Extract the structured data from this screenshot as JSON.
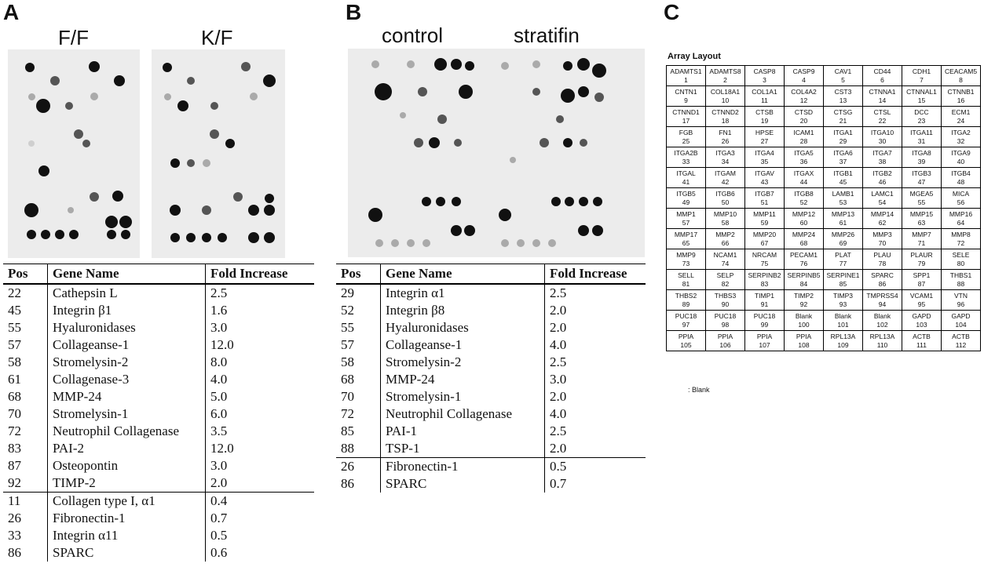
{
  "panels": {
    "a": "A",
    "b": "B",
    "c": "C"
  },
  "blots_a": {
    "left": "F/F",
    "right": "K/F"
  },
  "blots_b": {
    "left": "control",
    "right": "stratifin"
  },
  "table_headers": {
    "pos": "Pos",
    "gene": "Gene Name",
    "fold": "Fold Increase"
  },
  "table_a": {
    "rows": [
      {
        "pos": "22",
        "gene": "Cathepsin L",
        "fold": "2.5"
      },
      {
        "pos": "45",
        "gene": "Integrin β1",
        "fold": "1.6"
      },
      {
        "pos": "55",
        "gene": "Hyaluronidases",
        "fold": "3.0"
      },
      {
        "pos": "57",
        "gene": "Collageanse-1",
        "fold": "12.0"
      },
      {
        "pos": "58",
        "gene": "Stromelysin-2",
        "fold": "8.0"
      },
      {
        "pos": "61",
        "gene": "Collagenase-3",
        "fold": "4.0"
      },
      {
        "pos": "68",
        "gene": "MMP-24",
        "fold": "5.0"
      },
      {
        "pos": "70",
        "gene": "Stromelysin-1",
        "fold": "6.0"
      },
      {
        "pos": "72",
        "gene": "Neutrophil Collagenase",
        "fold": "3.5"
      },
      {
        "pos": "83",
        "gene": "PAI-2",
        "fold": "12.0"
      },
      {
        "pos": "87",
        "gene": "Osteopontin",
        "fold": "3.0"
      },
      {
        "pos": "92",
        "gene": "TIMP-2",
        "fold": "2.0"
      }
    ],
    "decreased": [
      {
        "pos": "11",
        "gene": "Collagen type I, α1",
        "fold": "0.4"
      },
      {
        "pos": "26",
        "gene": "Fibronectin-1",
        "fold": "0.7"
      },
      {
        "pos": "33",
        "gene": "Integrin α11",
        "fold": "0.5"
      },
      {
        "pos": "86",
        "gene": "SPARC",
        "fold": "0.6"
      }
    ]
  },
  "table_b": {
    "rows": [
      {
        "pos": "29",
        "gene": "Integrin α1",
        "fold": "2.5"
      },
      {
        "pos": "52",
        "gene": "Integrin β8",
        "fold": "2.0"
      },
      {
        "pos": "55",
        "gene": "Hyaluronidases",
        "fold": "2.0"
      },
      {
        "pos": "57",
        "gene": "Collageanse-1",
        "fold": "4.0"
      },
      {
        "pos": "58",
        "gene": "Stromelysin-2",
        "fold": "2.5"
      },
      {
        "pos": "68",
        "gene": "MMP-24",
        "fold": "3.0"
      },
      {
        "pos": "70",
        "gene": "Stromelysin-1",
        "fold": "2.0"
      },
      {
        "pos": "72",
        "gene": "Neutrophil Collagenase",
        "fold": "4.0"
      },
      {
        "pos": "85",
        "gene": "PAI-1",
        "fold": "2.5"
      },
      {
        "pos": "88",
        "gene": "TSP-1",
        "fold": "2.0"
      }
    ],
    "decreased": [
      {
        "pos": "26",
        "gene": "Fibronectin-1",
        "fold": "0.5"
      },
      {
        "pos": "86",
        "gene": "SPARC",
        "fold": "0.7"
      }
    ]
  },
  "array": {
    "title": "Array Layout",
    "blank_note": ": Blank",
    "genes": [
      "ADAMTS1",
      "ADAMTS8",
      "CASP8",
      "CASP9",
      "CAV1",
      "CD44",
      "CDH1",
      "CEACAM5",
      "CNTN1",
      "COL18A1",
      "COL1A1",
      "COL4A2",
      "CST3",
      "CTNNA1",
      "CTNNAL1",
      "CTNNB1",
      "CTNND1",
      "CTNND2",
      "CTSB",
      "CTSD",
      "CTSG",
      "CTSL",
      "DCC",
      "ECM1",
      "FGB",
      "FN1",
      "HPSE",
      "ICAM1",
      "ITGA1",
      "ITGA10",
      "ITGA11",
      "ITGA2",
      "ITGA2B",
      "ITGA3",
      "ITGA4",
      "ITGA5",
      "ITGA6",
      "ITGA7",
      "ITGA8",
      "ITGA9",
      "ITGAL",
      "ITGAM",
      "ITGAV",
      "ITGAX",
      "ITGB1",
      "ITGB2",
      "ITGB3",
      "ITGB4",
      "ITGB5",
      "ITGB6",
      "ITGB7",
      "ITGB8",
      "LAMB1",
      "LAMC1",
      "MGEA5",
      "MICA",
      "MMP1",
      "MMP10",
      "MMP11",
      "MMP12",
      "MMP13",
      "MMP14",
      "MMP15",
      "MMP16",
      "MMP17",
      "MMP2",
      "MMP20",
      "MMP24",
      "MMP26",
      "MMP3",
      "MMP7",
      "MMP8",
      "MMP9",
      "NCAM1",
      "NRCAM",
      "PECAM1",
      "PLAT",
      "PLAU",
      "PLAUR",
      "SELE",
      "SELL",
      "SELP",
      "SERPINB2",
      "SERPINB5",
      "SERPINE1",
      "SPARC",
      "SPP1",
      "THBS1",
      "THBS2",
      "THBS3",
      "TIMP1",
      "TIMP2",
      "TIMP3",
      "TMPRSS4",
      "VCAM1",
      "VTN",
      "PUC18",
      "PUC18",
      "PUC18",
      "Blank",
      "Blank",
      "Blank",
      "GAPD",
      "GAPD",
      "PPIA",
      "PPIA",
      "PPIA",
      "PPIA",
      "RPL13A",
      "RPL13A",
      "ACTB",
      "ACTB"
    ]
  }
}
